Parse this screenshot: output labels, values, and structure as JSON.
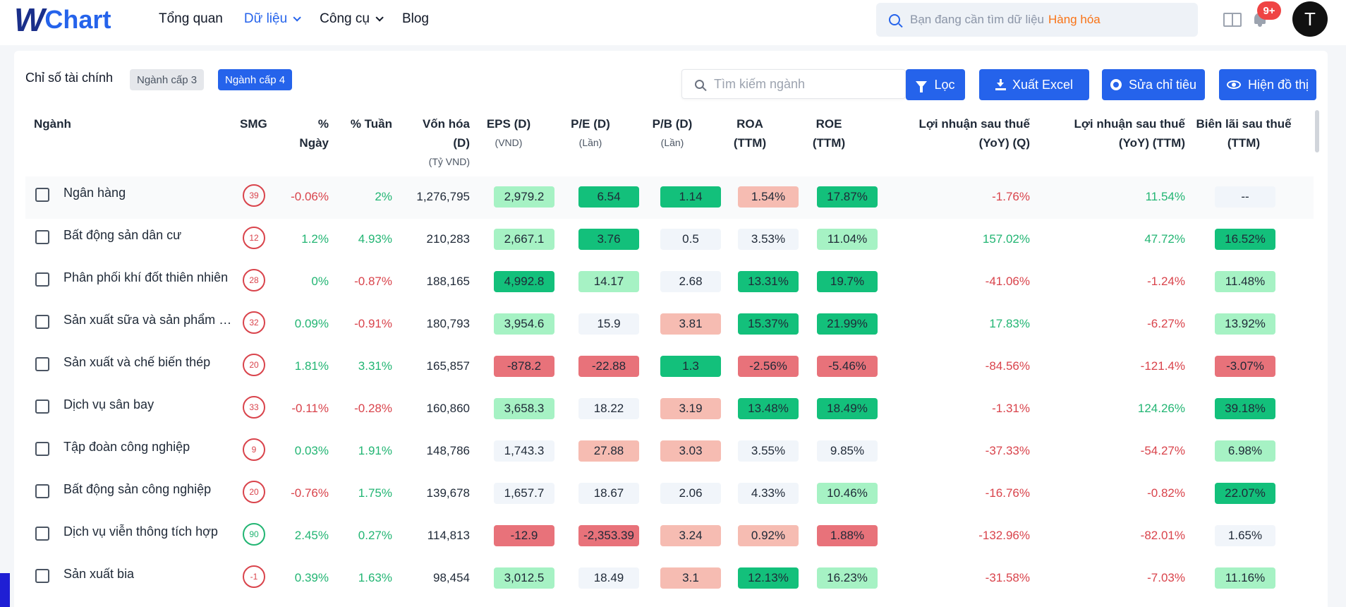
{
  "brand": {
    "w": "W",
    "name": "Chart"
  },
  "nav": {
    "items": [
      {
        "label": "Tổng quan",
        "has_dropdown": false,
        "active": false
      },
      {
        "label": "Dữ liệu",
        "has_dropdown": true,
        "active": true
      },
      {
        "label": "Công cụ",
        "has_dropdown": true,
        "active": false
      },
      {
        "label": "Blog",
        "has_dropdown": false,
        "active": false
      }
    ],
    "search_placeholder": "Bạn đang cần tìm dữ liệu",
    "search_highlight": "Hàng hóa",
    "notification_count": "9+",
    "avatar_letter": "T"
  },
  "toolbar": {
    "title": "Chỉ số tài chính",
    "chip_level3": "Ngành cấp 3",
    "chip_level4": "Ngành cấp 4",
    "sector_search_placeholder": "Tìm kiếm ngành",
    "filter_label": "Lọc",
    "export_label": "Xuất Excel",
    "edit_label": "Sửa chỉ tiêu",
    "chart_label": "Hiện đồ thị"
  },
  "columns": [
    {
      "key": "name",
      "l1": "Ngành",
      "l2": "",
      "sub": ""
    },
    {
      "key": "smg",
      "l1": "SMG",
      "l2": "",
      "sub": ""
    },
    {
      "key": "day",
      "l1": "%",
      "l2": "Ngày",
      "sub": ""
    },
    {
      "key": "week",
      "l1": "% Tuần",
      "l2": "",
      "sub": ""
    },
    {
      "key": "cap",
      "l1": "Vốn hóa",
      "l2": "(D)",
      "sub": "(Tỷ VND)"
    },
    {
      "key": "eps",
      "l1": "EPS (D)",
      "l2": "",
      "sub": "(VND)"
    },
    {
      "key": "pe",
      "l1": "P/E (D)",
      "l2": "",
      "sub": "(Lần)"
    },
    {
      "key": "pb",
      "l1": "P/B (D)",
      "l2": "",
      "sub": "(Lần)"
    },
    {
      "key": "roa",
      "l1": "ROA",
      "l2": "(TTM)",
      "sub": ""
    },
    {
      "key": "roe",
      "l1": "ROE",
      "l2": "(TTM)",
      "sub": ""
    },
    {
      "key": "lnq",
      "l1": "Lợi nhuận sau thuế",
      "l2": "(YoY) (Q)",
      "sub": ""
    },
    {
      "key": "lnttm",
      "l1": "Lợi nhuận sau thuế",
      "l2": "(YoY) (TTM)",
      "sub": ""
    },
    {
      "key": "margin",
      "l1": "Biên lãi sau thuế",
      "l2": "(TTM)",
      "sub": ""
    }
  ],
  "rows": [
    {
      "name": "Ngân hàng",
      "smg": "39",
      "smg_good": false,
      "day": "-0.06%",
      "day_t": "neg",
      "week": "2%",
      "week_t": "pos",
      "cap": "1,276,795",
      "eps": "2,979.2",
      "eps_c": "s2",
      "pe": "6.54",
      "pe_c": "s3",
      "pb": "1.14",
      "pb_c": "s3",
      "roa": "1.54%",
      "roa_c": "r2",
      "roe": "17.87%",
      "roe_c": "s3",
      "lnq": "-1.76%",
      "lnq_t": "neg",
      "lnttm": "11.54%",
      "lnttm_t": "pos",
      "margin": "--",
      "margin_c": "n0"
    },
    {
      "name": "Bất động sản dân cư",
      "smg": "12",
      "smg_good": false,
      "day": "1.2%",
      "day_t": "pos",
      "week": "4.93%",
      "week_t": "pos",
      "cap": "210,283",
      "eps": "2,667.1",
      "eps_c": "s2",
      "pe": "3.76",
      "pe_c": "s3",
      "pb": "0.5",
      "pb_c": "n0",
      "roa": "3.53%",
      "roa_c": "n0",
      "roe": "11.04%",
      "roe_c": "s2",
      "lnq": "157.02%",
      "lnq_t": "pos",
      "lnttm": "47.72%",
      "lnttm_t": "pos",
      "margin": "16.52%",
      "margin_c": "s3"
    },
    {
      "name": "Phân phối khí đốt thiên nhiên",
      "smg": "28",
      "smg_good": false,
      "day": "0%",
      "day_t": "pos",
      "week": "-0.87%",
      "week_t": "neg",
      "cap": "188,165",
      "eps": "4,992.8",
      "eps_c": "s3",
      "pe": "14.17",
      "pe_c": "s2",
      "pb": "2.68",
      "pb_c": "n0",
      "roa": "13.31%",
      "roa_c": "s3",
      "roe": "19.7%",
      "roe_c": "s3",
      "lnq": "-41.06%",
      "lnq_t": "neg",
      "lnttm": "-1.24%",
      "lnttm_t": "neg",
      "margin": "11.48%",
      "margin_c": "s2"
    },
    {
      "name": "Sản xuất sữa và sản phẩm sữa",
      "smg": "32",
      "smg_good": false,
      "day": "0.09%",
      "day_t": "pos",
      "week": "-0.91%",
      "week_t": "neg",
      "cap": "180,793",
      "eps": "3,954.6",
      "eps_c": "s2",
      "pe": "15.9",
      "pe_c": "n0",
      "pb": "3.81",
      "pb_c": "r2",
      "roa": "15.37%",
      "roa_c": "s3",
      "roe": "21.99%",
      "roe_c": "s3",
      "lnq": "17.83%",
      "lnq_t": "pos",
      "lnttm": "-6.27%",
      "lnttm_t": "neg",
      "margin": "13.92%",
      "margin_c": "s2"
    },
    {
      "name": "Sản xuất và chế biến thép",
      "smg": "20",
      "smg_good": false,
      "day": "1.81%",
      "day_t": "pos",
      "week": "3.31%",
      "week_t": "pos",
      "cap": "165,857",
      "eps": "-878.2",
      "eps_c": "r3",
      "pe": "-22.88",
      "pe_c": "r3",
      "pb": "1.3",
      "pb_c": "s3",
      "roa": "-2.56%",
      "roa_c": "r3",
      "roe": "-5.46%",
      "roe_c": "r3",
      "lnq": "-84.56%",
      "lnq_t": "neg",
      "lnttm": "-121.4%",
      "lnttm_t": "neg",
      "margin": "-3.07%",
      "margin_c": "r3"
    },
    {
      "name": "Dịch vụ sân bay",
      "smg": "33",
      "smg_good": false,
      "day": "-0.11%",
      "day_t": "neg",
      "week": "-0.28%",
      "week_t": "neg",
      "cap": "160,860",
      "eps": "3,658.3",
      "eps_c": "s2",
      "pe": "18.22",
      "pe_c": "n0",
      "pb": "3.19",
      "pb_c": "r2",
      "roa": "13.48%",
      "roa_c": "s3",
      "roe": "18.49%",
      "roe_c": "s3",
      "lnq": "-1.31%",
      "lnq_t": "neg",
      "lnttm": "124.26%",
      "lnttm_t": "pos",
      "margin": "39.18%",
      "margin_c": "s3"
    },
    {
      "name": "Tập đoàn công nghiệp",
      "smg": "9",
      "smg_good": false,
      "day": "0.03%",
      "day_t": "pos",
      "week": "1.91%",
      "week_t": "pos",
      "cap": "148,786",
      "eps": "1,743.3",
      "eps_c": "n0",
      "pe": "27.88",
      "pe_c": "r2",
      "pb": "3.03",
      "pb_c": "r2",
      "roa": "3.55%",
      "roa_c": "n0",
      "roe": "9.85%",
      "roe_c": "n0",
      "lnq": "-37.33%",
      "lnq_t": "neg",
      "lnttm": "-54.27%",
      "lnttm_t": "neg",
      "margin": "6.98%",
      "margin_c": "s2"
    },
    {
      "name": "Bất động sản công nghiệp",
      "smg": "20",
      "smg_good": false,
      "day": "-0.76%",
      "day_t": "neg",
      "week": "1.75%",
      "week_t": "pos",
      "cap": "139,678",
      "eps": "1,657.7",
      "eps_c": "n0",
      "pe": "18.67",
      "pe_c": "n0",
      "pb": "2.06",
      "pb_c": "n0",
      "roa": "4.33%",
      "roa_c": "n0",
      "roe": "10.46%",
      "roe_c": "s2",
      "lnq": "-16.76%",
      "lnq_t": "neg",
      "lnttm": "-0.82%",
      "lnttm_t": "neg",
      "margin": "22.07%",
      "margin_c": "s3"
    },
    {
      "name": "Dịch vụ viễn thông tích hợp",
      "smg": "90",
      "smg_good": true,
      "day": "2.45%",
      "day_t": "pos",
      "week": "0.27%",
      "week_t": "pos",
      "cap": "114,813",
      "eps": "-12.9",
      "eps_c": "r3",
      "pe": "-2,353.39",
      "pe_c": "r3",
      "pb": "3.24",
      "pb_c": "r2",
      "roa": "0.92%",
      "roa_c": "r2",
      "roe": "1.88%",
      "roe_c": "r3",
      "lnq": "-132.96%",
      "lnq_t": "neg",
      "lnttm": "-82.01%",
      "lnttm_t": "neg",
      "margin": "1.65%",
      "margin_c": "n0"
    },
    {
      "name": "Sản xuất bia",
      "smg": "-1",
      "smg_good": false,
      "day": "0.39%",
      "day_t": "pos",
      "week": "1.63%",
      "week_t": "pos",
      "cap": "98,454",
      "eps": "3,012.5",
      "eps_c": "s2",
      "pe": "18.49",
      "pe_c": "n0",
      "pb": "3.1",
      "pb_c": "r2",
      "roa": "12.13%",
      "roa_c": "s3",
      "roe": "16.23%",
      "roe_c": "s2",
      "lnq": "-31.58%",
      "lnq_t": "neg",
      "lnttm": "-7.03%",
      "lnttm_t": "neg",
      "margin": "11.16%",
      "margin_c": "s2"
    }
  ]
}
